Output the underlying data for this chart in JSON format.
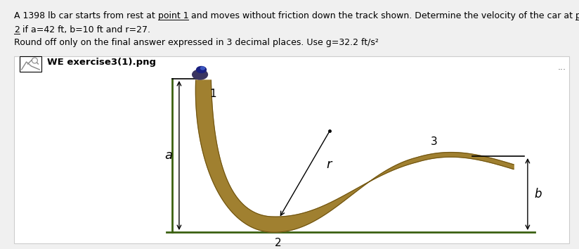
{
  "bg_color": "#f0f0f0",
  "panel_bg": "#ffffff",
  "track_color": "#a08030",
  "track_dark": "#6b5010",
  "ground_color": "#3a6010",
  "text_color": "#000000",
  "label_a": "a",
  "label_r": "r",
  "label_b": "b",
  "label_1": "1",
  "label_2": "2",
  "label_3": "3",
  "image_placeholder_text": "WE exercise3(1).png",
  "line1_parts": [
    [
      "A 1398 lb car starts from rest at ",
      false
    ],
    [
      "point 1",
      true
    ],
    [
      " and moves without friction down the track shown. Determine the velocity of the car at ",
      false
    ],
    [
      "point",
      true
    ]
  ],
  "line2_parts": [
    [
      "2",
      true
    ],
    [
      " if a=42 ft, b=10 ft and r=27.",
      false
    ]
  ],
  "line3": "Round off only on the final answer expressed in 3 decimal places. Use g=32.2 ft/s²",
  "fontsize_text": 9.0,
  "fontsize_label": 12,
  "fontsize_num": 11
}
